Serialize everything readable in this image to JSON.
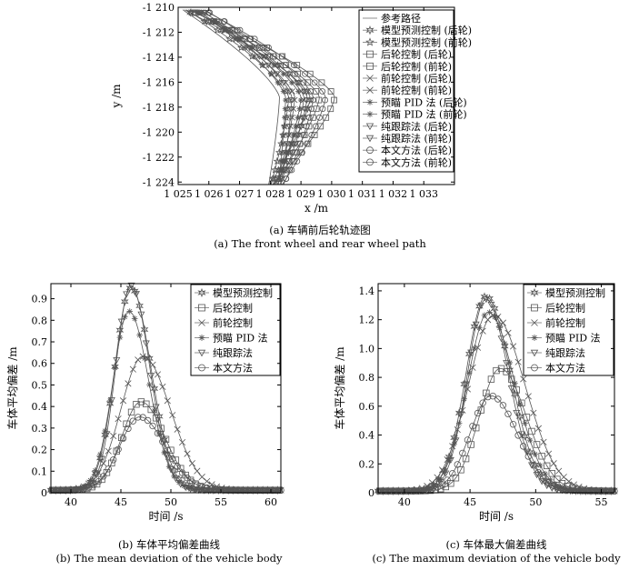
{
  "chart_data": [
    {
      "id": "a",
      "type": "line",
      "xlabel": "x /m",
      "ylabel": "y /m",
      "xlim": [
        1025,
        1034
      ],
      "ylim": [
        -1224.2,
        -1210
      ],
      "xticks": [
        1025,
        1026,
        1027,
        1028,
        1029,
        1030,
        1031,
        1032,
        1033
      ],
      "yticks": [
        -1210,
        -1212,
        -1214,
        -1216,
        -1218,
        -1220,
        -1222,
        -1224
      ],
      "xtick_labels": [
        "1 025",
        "1 026",
        "1 027",
        "1 028",
        "1 029",
        "1 030",
        "1 031",
        "1 032",
        "1 033"
      ],
      "ytick_labels": [
        "-1 210",
        "-1 212",
        "-1 214",
        "-1 216",
        "-1 218",
        "-1 220",
        "-1 222",
        "-1 224"
      ],
      "legend_position": "top-right",
      "series": [
        {
          "name": "参考路径",
          "marker": "none",
          "apex": 1028.3
        },
        {
          "name": "模型预测控制 (后轮)",
          "marker": "hexagram",
          "apex": 1029.3
        },
        {
          "name": "模型预测控制 (前轮)",
          "marker": "pentagram",
          "apex": 1028.6
        },
        {
          "name": "后轮控制 (后轮)",
          "marker": "square",
          "apex": 1030.1
        },
        {
          "name": "后轮控制 (前轮)",
          "marker": "square",
          "apex": 1029.6
        },
        {
          "name": "前轮控制 (后轮)",
          "marker": "x",
          "apex": 1029.1
        },
        {
          "name": "前轮控制 (前轮)",
          "marker": "x",
          "apex": 1028.8
        },
        {
          "name": "预瞄 PID 法 (后轮)",
          "marker": "asterisk",
          "apex": 1029.0
        },
        {
          "name": "预瞄 PID 法 (前轮)",
          "marker": "asterisk",
          "apex": 1028.5
        },
        {
          "name": "纯跟踪法 (后轮)",
          "marker": "triangle-down",
          "apex": 1029.2
        },
        {
          "name": "纯跟踪法 (前轮)",
          "marker": "triangle-down",
          "apex": 1028.7
        },
        {
          "name": "本文方法 (后轮)",
          "marker": "circle",
          "apex": 1029.8
        },
        {
          "name": "本文方法 (前轮)",
          "marker": "circle",
          "apex": 1029.4
        }
      ],
      "caption_zh": "(a) 车辆前后轮轨迹图",
      "caption_en": "(a) The front wheel and rear wheel path"
    },
    {
      "id": "b",
      "type": "line",
      "xlabel": "时间 /s",
      "ylabel": "车体平均偏差 /m",
      "xlim": [
        38,
        61
      ],
      "ylim": [
        0,
        0.97
      ],
      "xticks": [
        40,
        45,
        50,
        55,
        60
      ],
      "yticks": [
        0,
        0.1,
        0.2,
        0.3,
        0.4,
        0.5,
        0.6,
        0.7,
        0.8,
        0.9
      ],
      "xtick_labels": [
        "40",
        "45",
        "50",
        "55",
        "60"
      ],
      "ytick_labels": [
        "0",
        "0.1",
        "0.2",
        "0.3",
        "0.4",
        "0.5",
        "0.6",
        "0.7",
        "0.8",
        "0.9"
      ],
      "legend_position": "top-right",
      "series": [
        {
          "name": "模型预测控制",
          "marker": "hexagram",
          "peak_x": 46.0,
          "peak": 0.94,
          "width": 1.6
        },
        {
          "name": "后轮控制",
          "marker": "square",
          "peak_x": 47.0,
          "peak": 0.41,
          "width": 1.9
        },
        {
          "name": "前轮控制",
          "marker": "x",
          "peak_x": 47.2,
          "peak": 0.62,
          "width": 2.2
        },
        {
          "name": "预瞄 PID 法",
          "marker": "asterisk",
          "peak_x": 45.8,
          "peak": 0.83,
          "width": 1.6
        },
        {
          "name": "纯跟踪法",
          "marker": "triangle-down",
          "peak_x": 46.0,
          "peak": 0.95,
          "width": 1.5
        },
        {
          "name": "本文方法",
          "marker": "circle",
          "peak_x": 46.9,
          "peak": 0.34,
          "width": 2.0
        }
      ],
      "caption_zh": "(b) 车体平均偏差曲线",
      "caption_en": "(b) The mean deviation of the vehicle body"
    },
    {
      "id": "c",
      "type": "line",
      "xlabel": "时间 /s",
      "ylabel": "车体平均偏差 /m",
      "xlim": [
        38,
        56
      ],
      "ylim": [
        0,
        1.45
      ],
      "xticks": [
        40,
        45,
        50,
        55
      ],
      "yticks": [
        0,
        0.2,
        0.4,
        0.6,
        0.8,
        1.0,
        1.2,
        1.4
      ],
      "xtick_labels": [
        "40",
        "45",
        "50",
        "55"
      ],
      "ytick_labels": [
        "0",
        "0.2",
        "0.4",
        "0.6",
        "0.8",
        "1.0",
        "1.2",
        "1.4"
      ],
      "legend_position": "top-right",
      "series": [
        {
          "name": "模型预测控制",
          "marker": "hexagram",
          "peak_x": 46.2,
          "peak": 1.35,
          "width": 1.5
        },
        {
          "name": "后轮控制",
          "marker": "square",
          "peak_x": 47.3,
          "peak": 0.85,
          "width": 1.6
        },
        {
          "name": "前轮控制",
          "marker": "x",
          "peak_x": 46.8,
          "peak": 1.22,
          "width": 1.9
        },
        {
          "name": "预瞄 PID 法",
          "marker": "asterisk",
          "peak_x": 46.4,
          "peak": 1.24,
          "width": 1.6
        },
        {
          "name": "纯跟踪法",
          "marker": "triangle-down",
          "peak_x": 46.2,
          "peak": 1.33,
          "width": 1.4
        },
        {
          "name": "本文方法",
          "marker": "circle",
          "peak_x": 46.6,
          "peak": 0.66,
          "width": 1.6
        }
      ],
      "caption_zh": "(c) 车体最大偏差曲线",
      "caption_en": "(c) The maximum deviation of the vehicle body"
    }
  ]
}
